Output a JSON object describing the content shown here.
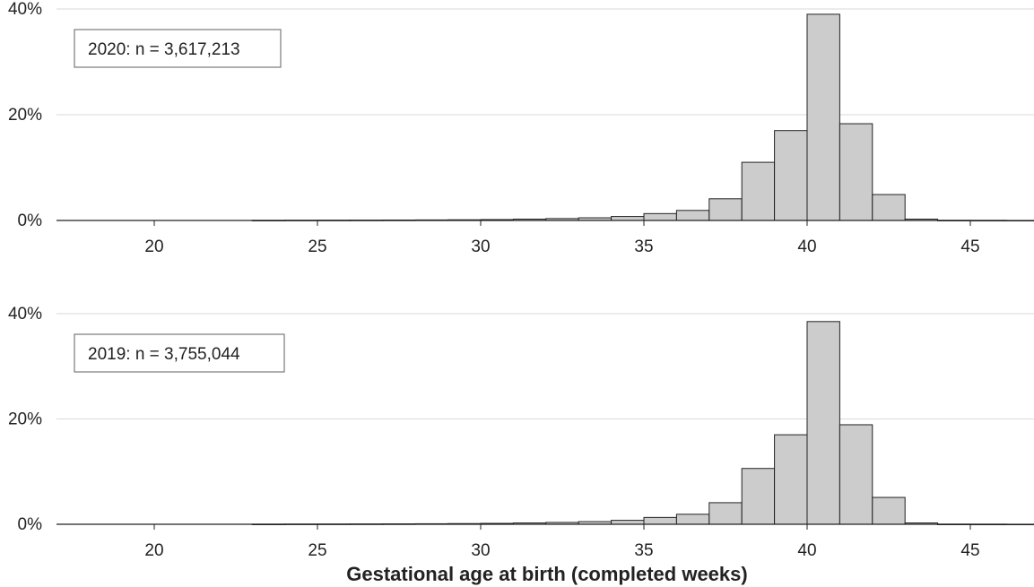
{
  "chart_data": [
    {
      "type": "bar",
      "panel_label": "2020: n = 3,617,213",
      "x": [
        17,
        18,
        19,
        20,
        21,
        22,
        23,
        24,
        25,
        26,
        27,
        28,
        29,
        30,
        31,
        32,
        33,
        34,
        35,
        36,
        37,
        38,
        39,
        40,
        41,
        42,
        43,
        44,
        45,
        46,
        47
      ],
      "values": [
        0,
        0,
        0,
        0,
        0,
        0,
        0.02,
        0.04,
        0.05,
        0.06,
        0.08,
        0.1,
        0.13,
        0.17,
        0.25,
        0.36,
        0.5,
        0.75,
        1.3,
        1.9,
        4.1,
        11,
        17,
        39,
        18.3,
        4.9,
        0.25,
        0.02,
        0.01,
        0.01,
        0
      ],
      "xticks": [
        "20",
        "25",
        "30",
        "35",
        "40",
        "45"
      ],
      "xtick_values": [
        20,
        25,
        30,
        35,
        40,
        45
      ],
      "yticks": [
        "0%",
        "20%",
        "40%"
      ],
      "ytick_values": [
        0,
        20,
        40
      ],
      "xlim": [
        16.6,
        47.1
      ],
      "ylim": [
        0,
        40
      ],
      "grid": "horizontal"
    },
    {
      "type": "bar",
      "panel_label": "2019: n = 3,755,044",
      "x": [
        17,
        18,
        19,
        20,
        21,
        22,
        23,
        24,
        25,
        26,
        27,
        28,
        29,
        30,
        31,
        32,
        33,
        34,
        35,
        36,
        37,
        38,
        39,
        40,
        41,
        42,
        43,
        44,
        45,
        46,
        47
      ],
      "values": [
        0,
        0,
        0,
        0,
        0,
        0,
        0.02,
        0.04,
        0.05,
        0.06,
        0.08,
        0.1,
        0.13,
        0.17,
        0.25,
        0.35,
        0.5,
        0.75,
        1.3,
        1.9,
        4.1,
        10.6,
        17,
        38.5,
        18.9,
        5.1,
        0.25,
        0.02,
        0.01,
        0.01,
        0
      ],
      "xticks": [
        "20",
        "25",
        "30",
        "35",
        "40",
        "45"
      ],
      "xtick_values": [
        20,
        25,
        30,
        35,
        40,
        45
      ],
      "yticks": [
        "0%",
        "20%",
        "40%"
      ],
      "ytick_values": [
        0,
        20,
        40
      ],
      "xlim": [
        16.6,
        47.1
      ],
      "ylim": [
        0,
        40
      ],
      "grid": "horizontal"
    }
  ],
  "xlabel": "Gestational age at birth (completed weeks)",
  "colors": {
    "bar_fill": "#cccccc",
    "bar_stroke": "#222222",
    "grid": "#d9d9d9",
    "axis": "#222222",
    "label_box": "#7a7a7a"
  }
}
